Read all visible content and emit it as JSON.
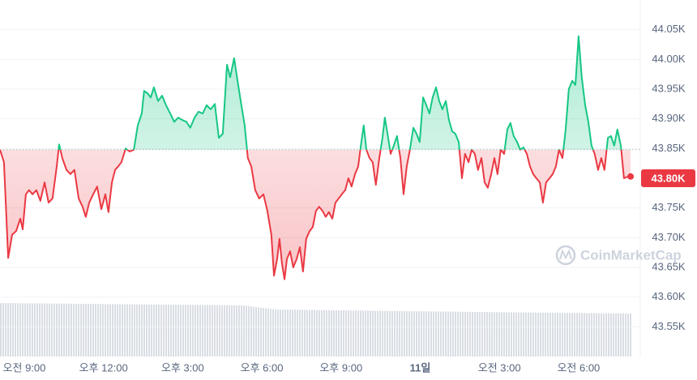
{
  "chart_data": {
    "type": "line",
    "xlim": [
      8.08,
      32.03
    ],
    "ylim": [
      43500,
      44100
    ],
    "baseline": 43848,
    "up_color": "#16c784",
    "down_color": "#ea3943",
    "grid": true,
    "yticks": [
      {
        "value": 43550,
        "label": "43.55K"
      },
      {
        "value": 43600,
        "label": "43.60K"
      },
      {
        "value": 43650,
        "label": "43.65K"
      },
      {
        "value": 43700,
        "label": "43.70K"
      },
      {
        "value": 43750,
        "label": "43.75K"
      },
      {
        "value": 43850,
        "label": "43.85K"
      },
      {
        "value": 43900,
        "label": "43.90K"
      },
      {
        "value": 43950,
        "label": "43.95K"
      },
      {
        "value": 44000,
        "label": "44.00K"
      },
      {
        "value": 44050,
        "label": "44.05K"
      }
    ],
    "xticks": [
      {
        "value": 9,
        "label": "오전 9:00"
      },
      {
        "value": 12,
        "label": "오후 12:00"
      },
      {
        "value": 15,
        "label": "오후 3:00"
      },
      {
        "value": 18,
        "label": "오후 6:00"
      },
      {
        "value": 21,
        "label": "오후 9:00"
      },
      {
        "value": 24,
        "label": "11일"
      },
      {
        "value": 27,
        "label": "오전 3:00"
      },
      {
        "value": 30,
        "label": "오전 6:00"
      }
    ],
    "last_price": {
      "value": 43800,
      "label": "43.80K"
    },
    "watermark": "CoinMarketCap",
    "x": [
      8.08,
      8.23,
      8.39,
      8.54,
      8.69,
      8.85,
      8.94,
      9.06,
      9.18,
      9.31,
      9.46,
      9.61,
      9.77,
      9.92,
      10.07,
      10.23,
      10.32,
      10.44,
      10.6,
      10.75,
      10.9,
      11.06,
      11.21,
      11.33,
      11.46,
      11.61,
      11.76,
      11.92,
      12.07,
      12.19,
      12.32,
      12.44,
      12.56,
      12.68,
      12.84,
      12.99,
      13.15,
      13.3,
      13.45,
      13.54,
      13.67,
      13.79,
      13.91,
      14.07,
      14.22,
      14.37,
      14.53,
      14.68,
      14.83,
      14.99,
      15.14,
      15.29,
      15.45,
      15.6,
      15.76,
      15.91,
      16.06,
      16.22,
      16.37,
      16.52,
      16.68,
      16.8,
      16.95,
      17.08,
      17.2,
      17.35,
      17.47,
      17.6,
      17.75,
      17.9,
      18.06,
      18.21,
      18.36,
      18.46,
      18.58,
      18.67,
      18.76,
      18.86,
      18.95,
      19.07,
      19.19,
      19.32,
      19.44,
      19.56,
      19.68,
      19.81,
      19.93,
      20.05,
      20.17,
      20.3,
      20.42,
      20.54,
      20.67,
      20.79,
      20.91,
      21.03,
      21.16,
      21.28,
      21.4,
      21.53,
      21.65,
      21.77,
      21.86,
      21.96,
      22.08,
      22.2,
      22.32,
      22.45,
      22.57,
      22.66,
      22.76,
      22.88,
      23.0,
      23.12,
      23.25,
      23.37,
      23.49,
      23.61,
      23.74,
      23.86,
      23.98,
      24.11,
      24.23,
      24.35,
      24.47,
      24.6,
      24.72,
      24.84,
      24.97,
      25.09,
      25.21,
      25.33,
      25.46,
      25.58,
      25.7,
      25.83,
      25.95,
      26.07,
      26.19,
      26.32,
      26.44,
      26.56,
      26.69,
      26.81,
      26.93,
      27.05,
      27.18,
      27.3,
      27.42,
      27.54,
      27.67,
      27.79,
      27.91,
      28.04,
      28.16,
      28.28,
      28.4,
      28.53,
      28.65,
      28.77,
      28.9,
      29.02,
      29.14,
      29.26,
      29.39,
      29.51,
      29.63,
      29.76,
      29.88,
      30.0,
      30.12,
      30.25,
      30.37,
      30.49,
      30.61,
      30.74,
      30.86,
      30.98,
      31.11,
      31.23,
      31.35,
      31.47,
      31.6,
      31.72,
      31.87,
      31.97
    ],
    "series": [
      {
        "values": [
          43848,
          43827,
          43666,
          43705,
          43711,
          43732,
          43714,
          43773,
          43780,
          43773,
          43780,
          43762,
          43793,
          43759,
          43766,
          43820,
          43857,
          43834,
          43814,
          43807,
          43814,
          43766,
          43752,
          43735,
          43759,
          43773,
          43786,
          43748,
          43773,
          43743,
          43793,
          43814,
          43820,
          43827,
          43850,
          43845,
          43848,
          43889,
          43909,
          43947,
          43943,
          43936,
          43953,
          43930,
          43939,
          43923,
          43909,
          43895,
          43902,
          43898,
          43895,
          43885,
          43902,
          43912,
          43909,
          43923,
          43916,
          43925,
          43868,
          43875,
          43991,
          43970,
          44002,
          43964,
          43930,
          43889,
          43834,
          43820,
          43780,
          43766,
          43773,
          43745,
          43705,
          43636,
          43664,
          43698,
          43657,
          43630,
          43664,
          43677,
          43650,
          43664,
          43684,
          43643,
          43698,
          43711,
          43718,
          43745,
          43752,
          43745,
          43735,
          43743,
          43732,
          43759,
          43766,
          43773,
          43780,
          43800,
          43786,
          43807,
          43820,
          43861,
          43889,
          43848,
          43834,
          43827,
          43789,
          43834,
          43868,
          43902,
          43875,
          43841,
          43855,
          43871,
          43834,
          43773,
          43820,
          43848,
          43885,
          43875,
          43861,
          43936,
          43923,
          43909,
          43936,
          43953,
          43930,
          43916,
          43930,
          43898,
          43879,
          43875,
          43861,
          43800,
          43841,
          43827,
          43848,
          43841,
          43814,
          43834,
          43793,
          43784,
          43807,
          43834,
          43807,
          43848,
          43841,
          43882,
          43893,
          43871,
          43861,
          43848,
          43852,
          43841,
          43820,
          43807,
          43800,
          43793,
          43759,
          43793,
          43800,
          43807,
          43820,
          43848,
          43834,
          43882,
          43950,
          43964,
          43957,
          44039,
          43970,
          43923,
          43895,
          43855,
          43841,
          43814,
          43834,
          43814,
          43868,
          43871,
          43855,
          43882,
          43855,
          43800,
          43803,
          43803
        ]
      }
    ]
  }
}
